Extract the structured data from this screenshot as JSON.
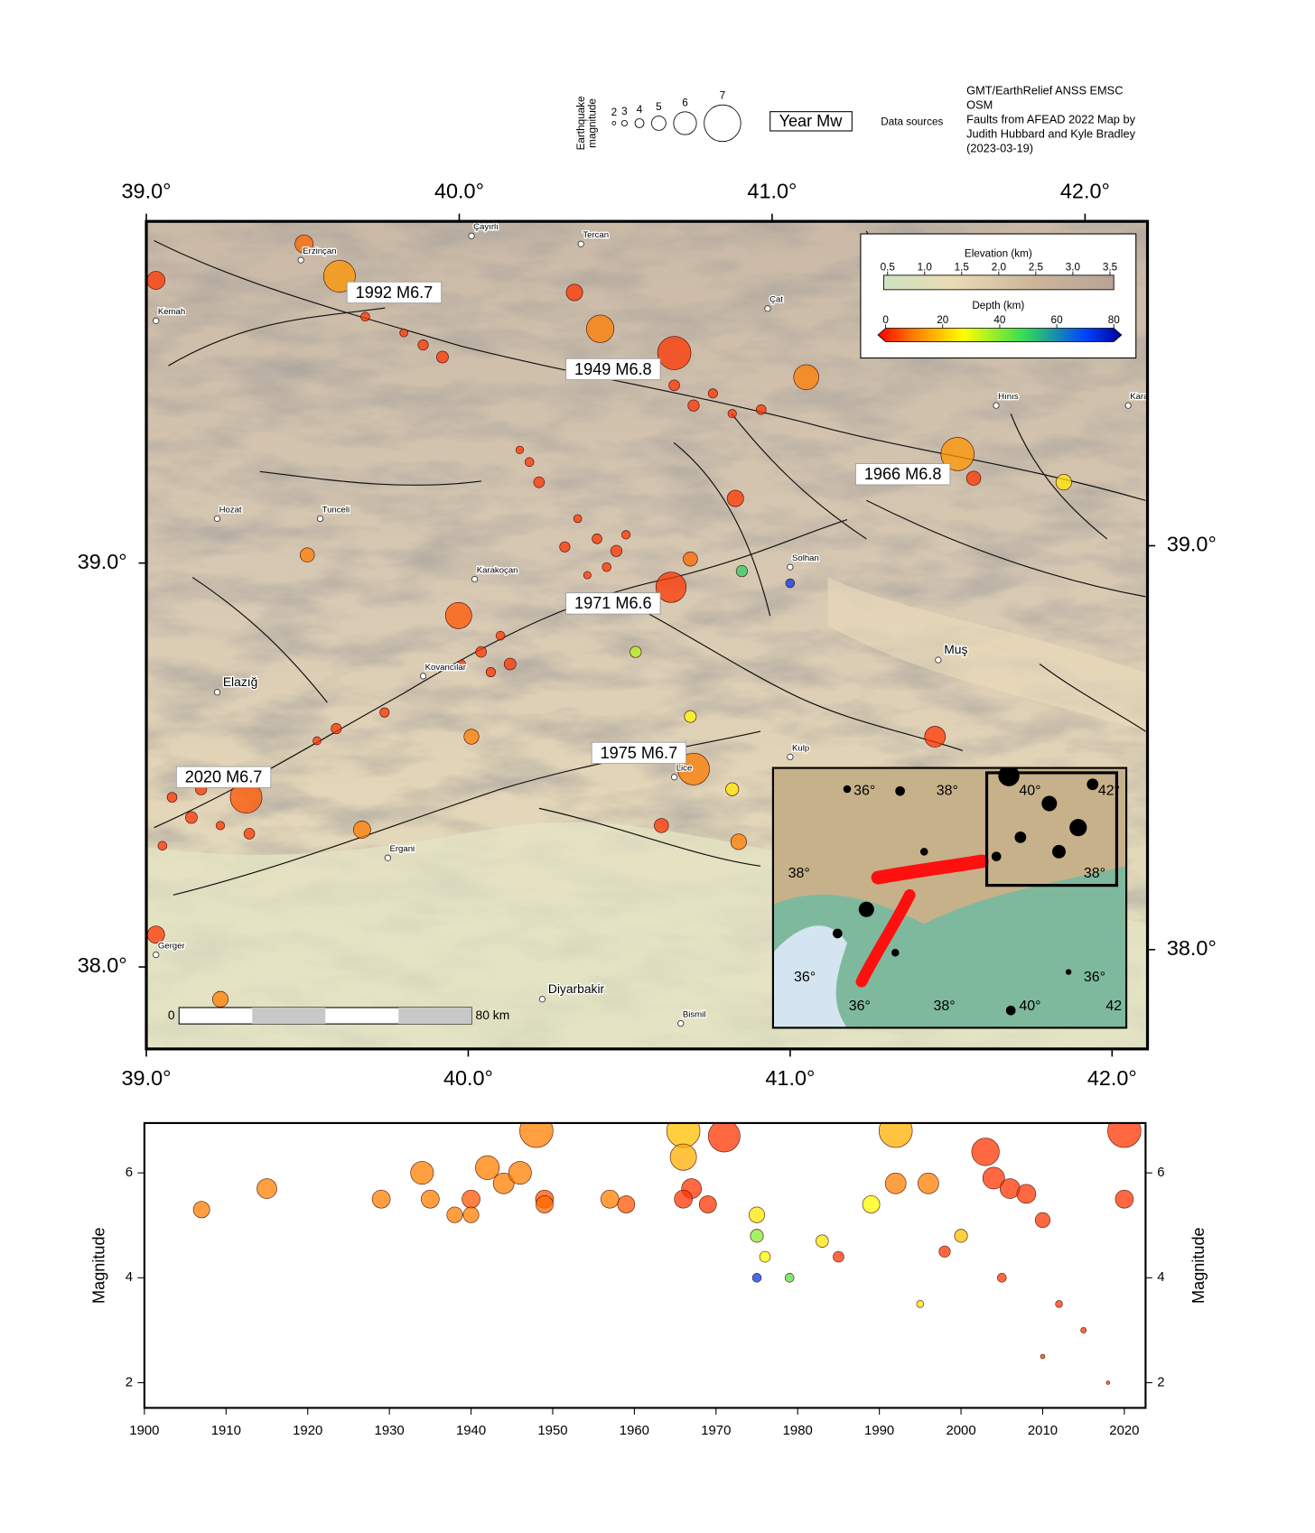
{
  "legend": {
    "magnitude_title": [
      "Earthquake",
      "magnitude"
    ],
    "magnitudes": [
      2,
      3,
      4,
      5,
      6,
      7
    ],
    "label_box": "Year Mw",
    "sources_title": "Data sources",
    "sources": [
      "GMT/EarthRelief ANSS EMSC",
      "OSM",
      "Faults from AFEAD 2022 Map by",
      "Judith Hubbard and Kyle Bradley",
      "(2023-03-19)"
    ]
  },
  "map": {
    "xlim": [
      39.0,
      42.11
    ],
    "ylim": [
      37.797,
      39.846
    ],
    "xticks": [
      {
        "value": 39,
        "label": "39.0°"
      },
      {
        "value": 40,
        "label": "40.0°"
      },
      {
        "value": 41,
        "label": "41.0°"
      },
      {
        "value": 42,
        "label": "42.0°"
      }
    ],
    "yticks": [
      {
        "value": 38,
        "label": "38.0°"
      },
      {
        "value": 39,
        "label": "39.0°"
      }
    ],
    "cities": [
      {
        "name": "Erzinçan",
        "lon": 39.48,
        "lat": 39.75
      },
      {
        "name": "Çayırlı",
        "lon": 40.01,
        "lat": 39.81
      },
      {
        "name": "Tercan",
        "lon": 40.35,
        "lat": 39.79
      },
      {
        "name": "Kemah",
        "lon": 39.03,
        "lat": 39.6
      },
      {
        "name": "Çat",
        "lon": 40.93,
        "lat": 39.63
      },
      {
        "name": "Hınıs",
        "lon": 41.64,
        "lat": 39.39
      },
      {
        "name": "Karaçoban",
        "lon": 42.05,
        "lat": 39.39
      },
      {
        "name": "Hozat",
        "lon": 39.22,
        "lat": 39.11
      },
      {
        "name": "Tunceli",
        "lon": 39.54,
        "lat": 39.11
      },
      {
        "name": "Karakoçan",
        "lon": 40.02,
        "lat": 38.96
      },
      {
        "name": "Solhan",
        "lon": 41.0,
        "lat": 38.99
      },
      {
        "name": "Kovancılar",
        "lon": 39.86,
        "lat": 38.72
      },
      {
        "name": "Elazığ",
        "lon": 39.22,
        "lat": 38.68,
        "major": true
      },
      {
        "name": "Muş",
        "lon": 41.46,
        "lat": 38.76,
        "major": true
      },
      {
        "name": "Kulp",
        "lon": 41.0,
        "lat": 38.52
      },
      {
        "name": "Lice",
        "lon": 40.64,
        "lat": 38.47
      },
      {
        "name": "Ergani",
        "lon": 39.75,
        "lat": 38.27
      },
      {
        "name": "Gerger",
        "lon": 39.03,
        "lat": 38.03
      },
      {
        "name": "Diyarbakir",
        "lon": 40.23,
        "lat": 37.92,
        "major": true
      },
      {
        "name": "Bismil",
        "lon": 40.66,
        "lat": 37.86
      }
    ],
    "events": [
      {
        "label": "1992 M6.7",
        "lon": 39.77,
        "lat": 39.67
      },
      {
        "label": "1949 M6.8",
        "lon": 40.45,
        "lat": 39.48
      },
      {
        "label": "1966 M6.8",
        "lon": 41.35,
        "lat": 39.22
      },
      {
        "label": "1971 M6.6",
        "lon": 40.45,
        "lat": 38.9
      },
      {
        "label": "1975 M6.7",
        "lon": 40.53,
        "lat": 38.53
      },
      {
        "label": "2020 M6.7",
        "lon": 39.24,
        "lat": 38.47
      }
    ],
    "scale_bar": {
      "start": "0",
      "end": "80 km"
    },
    "elevation_colorbar": {
      "title": "Elevation (km)",
      "lim": [
        0.5,
        3.5
      ],
      "ticks": [
        0.5,
        {
          "value": 1,
          "label": "1.0"
        },
        1.5,
        {
          "value": 2,
          "label": "2.0"
        },
        2.5,
        {
          "value": 3,
          "label": "3.0"
        },
        3.5
      ]
    },
    "depth_colorbar": {
      "title": "Depth (km)",
      "lim": [
        0,
        80
      ],
      "ticks": [
        0,
        20,
        40,
        60,
        80
      ]
    },
    "earthquakes": {
      "lon": [
        39.6,
        40.41,
        40.64,
        41.05,
        41.52,
        40.63,
        39.97,
        40.7,
        39.31,
        40.85,
        41.0,
        41.45,
        39.03,
        39.49,
        40.33,
        41.85,
        41.57,
        40.83,
        40.69,
        40.01,
        39.67,
        39.5,
        40.6,
        40.84,
        39.23,
        39.03,
        40.82,
        40.69,
        40.52,
        40.4,
        40.34,
        40.46,
        40.43,
        40.37,
        40.3,
        40.49,
        40.04,
        40.1,
        39.98,
        40.13,
        40.07,
        39.86,
        39.8,
        39.92,
        39.68,
        40.7,
        40.76,
        40.82,
        40.64,
        40.91,
        39.14,
        39.08,
        39.23,
        39.32,
        39.05,
        39.17,
        39.59,
        39.53,
        39.74,
        40.19,
        40.16,
        40.22
      ],
      "lat": [
        39.71,
        39.58,
        39.52,
        39.46,
        39.27,
        38.94,
        38.87,
        38.49,
        38.42,
        38.98,
        38.95,
        38.57,
        39.7,
        39.79,
        39.67,
        39.2,
        39.21,
        39.16,
        39.01,
        38.57,
        38.34,
        39.02,
        38.35,
        38.31,
        37.92,
        38.08,
        38.44,
        38.62,
        38.78,
        39.06,
        39.11,
        39.03,
        38.99,
        38.97,
        39.04,
        39.07,
        38.78,
        38.82,
        38.75,
        38.75,
        38.73,
        39.54,
        39.57,
        39.51,
        39.61,
        39.39,
        39.42,
        39.37,
        39.44,
        39.38,
        38.37,
        38.42,
        38.35,
        38.33,
        38.3,
        38.44,
        38.59,
        38.56,
        38.63,
        39.25,
        39.28,
        39.2
      ],
      "magnitude": [
        6.7,
        6.4,
        6.8,
        6.2,
        6.8,
        6.6,
        6.3,
        6.7,
        6.7,
        4.5,
        4.0,
        5.8,
        5.5,
        5.5,
        5.3,
        5.2,
        5.0,
        5.3,
        5.0,
        5.1,
        5.4,
        5.0,
        5.0,
        5.2,
        5.2,
        5.4,
        4.8,
        4.6,
        4.5,
        4.2,
        3.8,
        4.5,
        4.0,
        3.6,
        4.3,
        3.9,
        4.4,
        4.0,
        3.7,
        4.6,
        4.1,
        4.3,
        3.8,
        4.6,
        4.0,
        4.5,
        4.1,
        3.9,
        4.4,
        4.2,
        4.6,
        4.2,
        3.9,
        4.4,
        4.0,
        4.5,
        4.3,
        3.8,
        4.1,
        4.0,
        3.7,
        4.4
      ],
      "depth": [
        15,
        12,
        5,
        12,
        15,
        5,
        8,
        12,
        8,
        50,
        70,
        5,
        5,
        10,
        5,
        25,
        5,
        5,
        10,
        12,
        12,
        12,
        5,
        12,
        12,
        5,
        25,
        28,
        35,
        5,
        5,
        5,
        5,
        5,
        5,
        5,
        5,
        5,
        5,
        5,
        5,
        5,
        5,
        5,
        5,
        5,
        5,
        5,
        5,
        5,
        5,
        5,
        5,
        5,
        5,
        5,
        5,
        5,
        5,
        5,
        5,
        5
      ]
    },
    "inset": {
      "top_labels": [
        "36°",
        "38°",
        "40°",
        "42°"
      ],
      "bottom_labels": [
        "36°",
        "38°",
        "40°",
        "42"
      ],
      "left_labels": [
        "38°",
        "36°"
      ],
      "right_labels": [
        "38°",
        "36°"
      ]
    }
  },
  "chart_data": {
    "type": "scatter",
    "ylabel": "Magnitude",
    "xlim": [
      1900,
      2022.6
    ],
    "ylim": [
      1.52,
      6.95
    ],
    "xticks": [
      1900,
      1910,
      1920,
      1930,
      1940,
      1950,
      1960,
      1970,
      1980,
      1990,
      2000,
      2010,
      2020
    ],
    "yticks": [
      2,
      4,
      6
    ],
    "x": [
      1907,
      1915,
      1929,
      1934,
      1935,
      1938,
      1940,
      1940,
      1942,
      1944,
      1946,
      1948,
      1949,
      1949,
      1957,
      1959,
      1966,
      1966,
      1967,
      1971,
      1966,
      1969,
      1975,
      1975,
      1976,
      1975,
      1979,
      1983,
      1992,
      1992,
      1989,
      1996,
      2003,
      2004,
      2006,
      2008,
      2010,
      2020,
      2020,
      1998,
      2005,
      2012,
      2015,
      2010,
      2018,
      1985,
      2000,
      1995
    ],
    "values": [
      5.3,
      5.7,
      5.5,
      6.0,
      5.5,
      5.2,
      5.5,
      5.2,
      6.1,
      5.8,
      6.0,
      6.8,
      5.5,
      5.4,
      5.5,
      5.4,
      6.8,
      6.3,
      5.7,
      6.7,
      5.5,
      5.4,
      5.2,
      4.8,
      4.4,
      4.0,
      4.0,
      4.7,
      6.8,
      5.8,
      5.4,
      5.8,
      6.4,
      5.9,
      5.7,
      5.6,
      5.1,
      6.8,
      5.5,
      4.5,
      4.0,
      3.5,
      3.0,
      2.5,
      2.0,
      4.4,
      4.8,
      3.5
    ],
    "depth": [
      12,
      12,
      12,
      12,
      12,
      12,
      8,
      12,
      12,
      12,
      12,
      12,
      8,
      10,
      12,
      8,
      20,
      18,
      5,
      5,
      5,
      5,
      25,
      40,
      28,
      70,
      45,
      25,
      18,
      12,
      28,
      12,
      5,
      5,
      5,
      5,
      5,
      5,
      5,
      5,
      5,
      5,
      5,
      5,
      5,
      5,
      20,
      25
    ]
  }
}
